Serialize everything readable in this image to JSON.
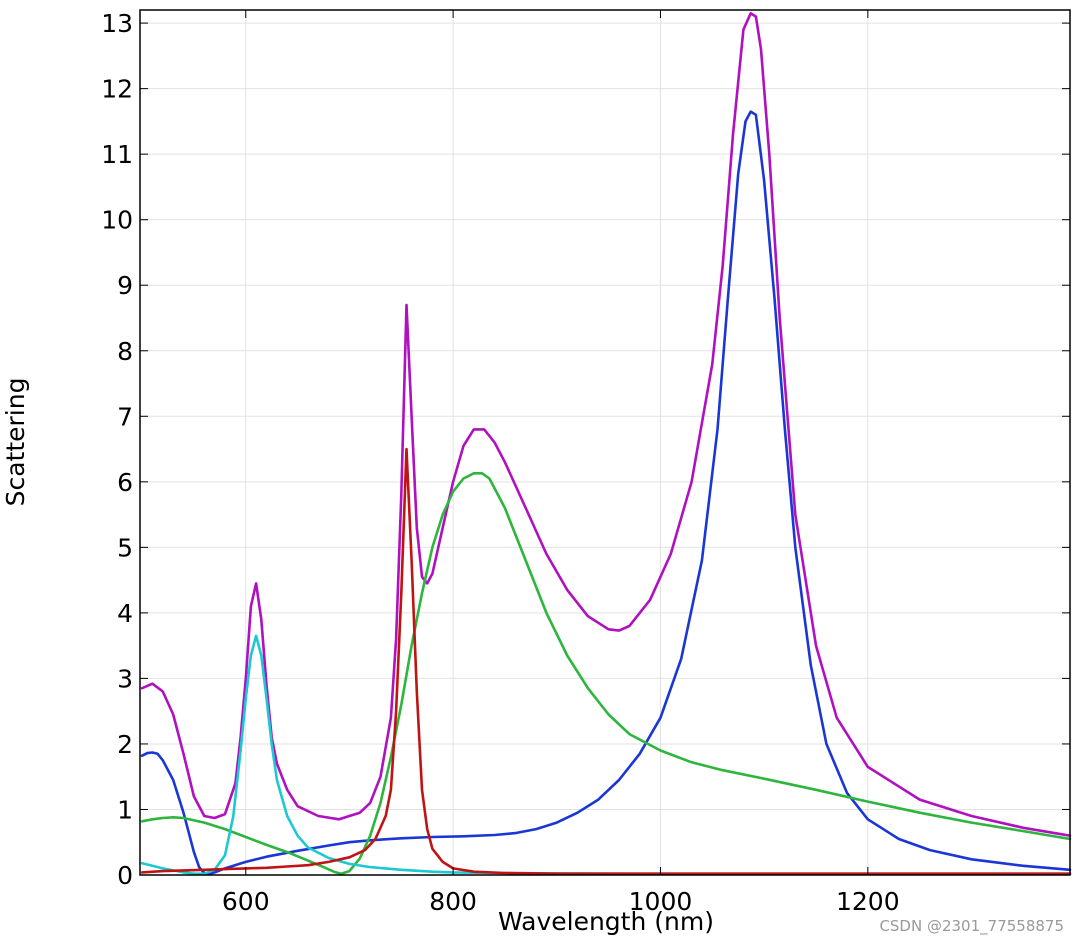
{
  "chart_data": {
    "type": "line",
    "title": "",
    "xlabel": "Wavelength (nm)",
    "ylabel": "Scattering",
    "xlim": [
      498,
      1395
    ],
    "ylim": [
      0,
      13.2
    ],
    "xticks": [
      600,
      800,
      1000,
      1200
    ],
    "yticks": [
      0,
      1,
      2,
      3,
      4,
      5,
      6,
      7,
      8,
      9,
      10,
      11,
      12,
      13
    ],
    "grid": true,
    "legend": "none",
    "series": [
      {
        "color": "#b010c0",
        "points": [
          [
            500,
            2.85
          ],
          [
            510,
            2.92
          ],
          [
            520,
            2.8
          ],
          [
            530,
            2.45
          ],
          [
            540,
            1.85
          ],
          [
            550,
            1.2
          ],
          [
            560,
            0.9
          ],
          [
            570,
            0.87
          ],
          [
            580,
            0.93
          ],
          [
            590,
            1.4
          ],
          [
            595,
            2.1
          ],
          [
            600,
            3.0
          ],
          [
            605,
            4.1
          ],
          [
            610,
            4.45
          ],
          [
            615,
            3.9
          ],
          [
            620,
            2.9
          ],
          [
            625,
            2.1
          ],
          [
            630,
            1.7
          ],
          [
            640,
            1.3
          ],
          [
            650,
            1.05
          ],
          [
            670,
            0.9
          ],
          [
            690,
            0.85
          ],
          [
            710,
            0.95
          ],
          [
            720,
            1.1
          ],
          [
            730,
            1.5
          ],
          [
            740,
            2.4
          ],
          [
            745,
            3.6
          ],
          [
            750,
            5.8
          ],
          [
            755,
            8.7
          ],
          [
            760,
            7.0
          ],
          [
            765,
            5.3
          ],
          [
            770,
            4.55
          ],
          [
            775,
            4.45
          ],
          [
            780,
            4.6
          ],
          [
            790,
            5.3
          ],
          [
            800,
            6.0
          ],
          [
            810,
            6.55
          ],
          [
            820,
            6.8
          ],
          [
            830,
            6.8
          ],
          [
            840,
            6.6
          ],
          [
            850,
            6.3
          ],
          [
            870,
            5.6
          ],
          [
            890,
            4.9
          ],
          [
            910,
            4.35
          ],
          [
            930,
            3.95
          ],
          [
            950,
            3.75
          ],
          [
            960,
            3.73
          ],
          [
            970,
            3.8
          ],
          [
            990,
            4.2
          ],
          [
            1010,
            4.9
          ],
          [
            1030,
            6.0
          ],
          [
            1050,
            7.8
          ],
          [
            1060,
            9.3
          ],
          [
            1070,
            11.3
          ],
          [
            1080,
            12.9
          ],
          [
            1087,
            13.15
          ],
          [
            1092,
            13.1
          ],
          [
            1097,
            12.6
          ],
          [
            1105,
            11.0
          ],
          [
            1115,
            8.5
          ],
          [
            1130,
            5.5
          ],
          [
            1150,
            3.5
          ],
          [
            1170,
            2.4
          ],
          [
            1200,
            1.65
          ],
          [
            1250,
            1.15
          ],
          [
            1300,
            0.9
          ],
          [
            1350,
            0.72
          ],
          [
            1395,
            0.6
          ]
        ]
      },
      {
        "color": "#1a37d6",
        "points": [
          [
            500,
            1.82
          ],
          [
            505,
            1.86
          ],
          [
            510,
            1.87
          ],
          [
            515,
            1.85
          ],
          [
            520,
            1.75
          ],
          [
            530,
            1.45
          ],
          [
            540,
            0.95
          ],
          [
            550,
            0.35
          ],
          [
            555,
            0.12
          ],
          [
            560,
            0.03
          ],
          [
            565,
            0.02
          ],
          [
            570,
            0.04
          ],
          [
            580,
            0.1
          ],
          [
            600,
            0.2
          ],
          [
            620,
            0.28
          ],
          [
            650,
            0.37
          ],
          [
            680,
            0.45
          ],
          [
            700,
            0.5
          ],
          [
            720,
            0.53
          ],
          [
            750,
            0.56
          ],
          [
            780,
            0.58
          ],
          [
            810,
            0.59
          ],
          [
            840,
            0.61
          ],
          [
            860,
            0.64
          ],
          [
            880,
            0.7
          ],
          [
            900,
            0.8
          ],
          [
            920,
            0.95
          ],
          [
            940,
            1.15
          ],
          [
            960,
            1.45
          ],
          [
            980,
            1.85
          ],
          [
            1000,
            2.4
          ],
          [
            1020,
            3.3
          ],
          [
            1040,
            4.8
          ],
          [
            1055,
            6.8
          ],
          [
            1065,
            8.8
          ],
          [
            1075,
            10.7
          ],
          [
            1082,
            11.5
          ],
          [
            1087,
            11.65
          ],
          [
            1092,
            11.6
          ],
          [
            1100,
            10.6
          ],
          [
            1110,
            8.8
          ],
          [
            1120,
            6.8
          ],
          [
            1130,
            5.0
          ],
          [
            1145,
            3.2
          ],
          [
            1160,
            2.0
          ],
          [
            1180,
            1.25
          ],
          [
            1200,
            0.85
          ],
          [
            1230,
            0.55
          ],
          [
            1260,
            0.38
          ],
          [
            1300,
            0.24
          ],
          [
            1350,
            0.14
          ],
          [
            1395,
            0.08
          ]
        ]
      },
      {
        "color": "#2eb53e",
        "points": [
          [
            500,
            0.82
          ],
          [
            510,
            0.85
          ],
          [
            520,
            0.87
          ],
          [
            530,
            0.88
          ],
          [
            540,
            0.87
          ],
          [
            560,
            0.8
          ],
          [
            580,
            0.7
          ],
          [
            600,
            0.58
          ],
          [
            620,
            0.46
          ],
          [
            640,
            0.35
          ],
          [
            660,
            0.22
          ],
          [
            675,
            0.12
          ],
          [
            685,
            0.05
          ],
          [
            692,
            0.02
          ],
          [
            700,
            0.06
          ],
          [
            710,
            0.25
          ],
          [
            720,
            0.6
          ],
          [
            730,
            1.1
          ],
          [
            740,
            1.8
          ],
          [
            750,
            2.6
          ],
          [
            760,
            3.5
          ],
          [
            770,
            4.3
          ],
          [
            780,
            5.0
          ],
          [
            790,
            5.5
          ],
          [
            800,
            5.85
          ],
          [
            810,
            6.05
          ],
          [
            820,
            6.13
          ],
          [
            828,
            6.13
          ],
          [
            835,
            6.05
          ],
          [
            850,
            5.6
          ],
          [
            870,
            4.8
          ],
          [
            890,
            4.0
          ],
          [
            910,
            3.35
          ],
          [
            930,
            2.85
          ],
          [
            950,
            2.45
          ],
          [
            970,
            2.15
          ],
          [
            1000,
            1.9
          ],
          [
            1030,
            1.72
          ],
          [
            1060,
            1.6
          ],
          [
            1100,
            1.47
          ],
          [
            1150,
            1.3
          ],
          [
            1200,
            1.12
          ],
          [
            1250,
            0.95
          ],
          [
            1300,
            0.8
          ],
          [
            1350,
            0.67
          ],
          [
            1395,
            0.55
          ]
        ]
      },
      {
        "color": "#1cc8d2",
        "points": [
          [
            500,
            0.18
          ],
          [
            510,
            0.14
          ],
          [
            520,
            0.1
          ],
          [
            530,
            0.07
          ],
          [
            540,
            0.04
          ],
          [
            550,
            0.02
          ],
          [
            560,
            0.02
          ],
          [
            570,
            0.08
          ],
          [
            580,
            0.3
          ],
          [
            588,
            0.9
          ],
          [
            595,
            1.9
          ],
          [
            600,
            2.7
          ],
          [
            605,
            3.35
          ],
          [
            610,
            3.65
          ],
          [
            615,
            3.35
          ],
          [
            620,
            2.7
          ],
          [
            625,
            2.0
          ],
          [
            630,
            1.45
          ],
          [
            640,
            0.9
          ],
          [
            650,
            0.6
          ],
          [
            660,
            0.42
          ],
          [
            680,
            0.26
          ],
          [
            700,
            0.17
          ],
          [
            720,
            0.12
          ],
          [
            750,
            0.08
          ],
          [
            780,
            0.05
          ],
          [
            800,
            0.04
          ],
          [
            850,
            0.03
          ],
          [
            900,
            0.025
          ],
          [
            1000,
            0.02
          ],
          [
            1100,
            0.02
          ],
          [
            1200,
            0.02
          ],
          [
            1300,
            0.02
          ],
          [
            1395,
            0.02
          ]
        ]
      },
      {
        "color": "#c01414",
        "points": [
          [
            500,
            0.04
          ],
          [
            520,
            0.06
          ],
          [
            540,
            0.07
          ],
          [
            560,
            0.08
          ],
          [
            580,
            0.09
          ],
          [
            600,
            0.1
          ],
          [
            620,
            0.11
          ],
          [
            640,
            0.13
          ],
          [
            660,
            0.15
          ],
          [
            680,
            0.2
          ],
          [
            700,
            0.27
          ],
          [
            715,
            0.38
          ],
          [
            725,
            0.55
          ],
          [
            735,
            0.9
          ],
          [
            740,
            1.3
          ],
          [
            745,
            2.5
          ],
          [
            750,
            4.3
          ],
          [
            755,
            6.5
          ],
          [
            760,
            4.8
          ],
          [
            765,
            2.8
          ],
          [
            770,
            1.3
          ],
          [
            775,
            0.7
          ],
          [
            780,
            0.4
          ],
          [
            790,
            0.2
          ],
          [
            800,
            0.1
          ],
          [
            820,
            0.05
          ],
          [
            850,
            0.03
          ],
          [
            900,
            0.02
          ],
          [
            1000,
            0.02
          ],
          [
            1100,
            0.02
          ],
          [
            1200,
            0.02
          ],
          [
            1300,
            0.02
          ],
          [
            1395,
            0.02
          ]
        ]
      }
    ]
  },
  "watermark": "CSDN @2301_77558875"
}
